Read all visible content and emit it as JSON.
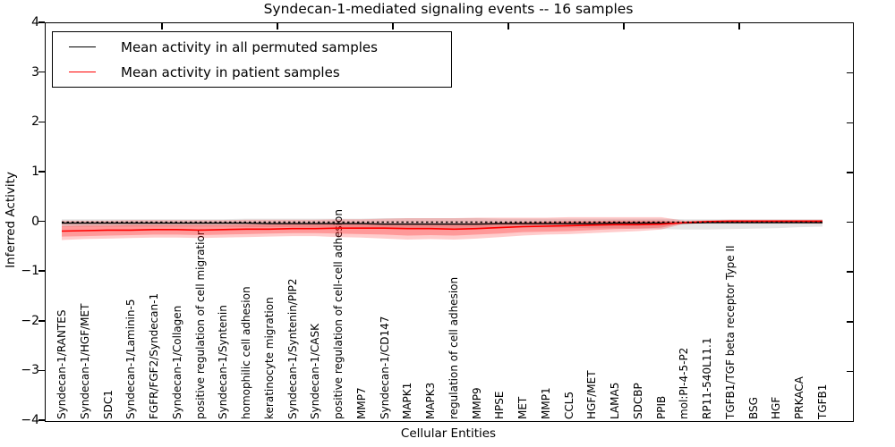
{
  "title": "Syndecan-1-mediated signaling events -- 16 samples",
  "axes": {
    "xlabel": "Cellular Entities",
    "ylabel": "Inferred Activity",
    "yticks": [
      "4",
      "3",
      "2",
      "1",
      "0",
      "−1",
      "−2",
      "−3",
      "−4"
    ],
    "ytick_values": [
      4,
      3,
      2,
      1,
      0,
      -1,
      -2,
      -3,
      -4
    ],
    "ylim": [
      -4,
      4
    ]
  },
  "legend": {
    "items": [
      {
        "label": "Mean activity in all permuted samples",
        "color": "#000000"
      },
      {
        "label": "Mean activity in patient samples",
        "color": "#ff0000"
      }
    ]
  },
  "colors": {
    "permuted_line": "#000000",
    "patient_line": "#ff0000",
    "permuted_band": "rgba(0,0,0,0.10)",
    "patient_band_outer": "rgba(255,0,0,0.20)",
    "patient_band_inner": "rgba(255,0,0,0.25)",
    "zero_line": "#000000"
  },
  "chart_data": {
    "type": "line",
    "title": "Syndecan-1-mediated signaling events -- 16 samples",
    "xlabel": "Cellular Entities",
    "ylabel": "Inferred Activity",
    "ylim": [
      -4,
      4
    ],
    "grid": false,
    "legend_position": "upper left",
    "zero_reference_line": 0,
    "categories": [
      "Syndecan-1/RANTES",
      "Syndecan-1/HGF/MET",
      "SDC1",
      "Syndecan-1/Laminin-5",
      "FGFR/FGF2/Syndecan-1",
      "Syndecan-1/Collagen",
      "positive regulation of cell migration",
      "Syndecan-1/Syntenin",
      "homophilic cell adhesion",
      "keratinocyte migration",
      "Syndecan-1/Syntenin/PIP2",
      "Syndecan-1/CASK",
      "positive regulation of cell-cell adhesion",
      "MMP7",
      "Syndecan-1/CD147",
      "MAPK1",
      "MAPK3",
      "regulation of cell adhesion",
      "MMP9",
      "HPSE",
      "MET",
      "MMP1",
      "CCL5",
      "HGF/MET",
      "LAMA5",
      "SDCBP",
      "PPIB",
      "mol:PI-4-5-P2",
      "RP11-540L11.1",
      "TGFB1/TGF beta receptor Type II",
      "BSG",
      "HGF",
      "PRKACA",
      "TGFB1"
    ],
    "series": [
      {
        "name": "Mean activity in all permuted samples",
        "color": "#000000",
        "values": [
          -0.02,
          -0.02,
          -0.02,
          -0.02,
          -0.02,
          -0.02,
          -0.02,
          -0.02,
          -0.02,
          -0.03,
          -0.03,
          -0.03,
          -0.03,
          -0.03,
          -0.04,
          -0.04,
          -0.04,
          -0.04,
          -0.04,
          -0.03,
          -0.03,
          -0.03,
          -0.03,
          -0.03,
          -0.02,
          -0.02,
          -0.02,
          -0.02,
          -0.01,
          -0.01,
          -0.01,
          -0.01,
          -0.01,
          -0.01
        ],
        "band_top": [
          0.06,
          0.06,
          0.06,
          0.06,
          0.06,
          0.06,
          0.06,
          0.06,
          0.07,
          0.07,
          0.07,
          0.07,
          0.07,
          0.07,
          0.08,
          0.08,
          0.08,
          0.08,
          0.08,
          0.07,
          0.07,
          0.07,
          0.07,
          0.07,
          0.07,
          0.07,
          0.07,
          0.06,
          0.06,
          0.06,
          0.06,
          0.06,
          0.06,
          0.06
        ],
        "band_bottom": [
          -0.09,
          -0.09,
          -0.09,
          -0.09,
          -0.09,
          -0.09,
          -0.09,
          -0.09,
          -0.1,
          -0.1,
          -0.1,
          -0.1,
          -0.1,
          -0.11,
          -0.11,
          -0.12,
          -0.12,
          -0.12,
          -0.12,
          -0.11,
          -0.11,
          -0.11,
          -0.11,
          -0.12,
          -0.12,
          -0.13,
          -0.14,
          -0.15,
          -0.15,
          -0.14,
          -0.13,
          -0.12,
          -0.1,
          -0.09
        ]
      },
      {
        "name": "Mean activity in patient samples",
        "color": "#ff0000",
        "values": [
          -0.18,
          -0.17,
          -0.16,
          -0.16,
          -0.15,
          -0.15,
          -0.16,
          -0.15,
          -0.14,
          -0.14,
          -0.13,
          -0.13,
          -0.12,
          -0.12,
          -0.12,
          -0.13,
          -0.13,
          -0.14,
          -0.13,
          -0.11,
          -0.09,
          -0.08,
          -0.07,
          -0.06,
          -0.05,
          -0.05,
          -0.04,
          -0.01,
          0.01,
          0.02,
          0.02,
          0.02,
          0.02,
          0.02
        ],
        "band_top": [
          0.03,
          0.03,
          0.03,
          0.04,
          0.04,
          0.04,
          0.04,
          0.04,
          0.05,
          0.05,
          0.05,
          0.05,
          0.06,
          0.06,
          0.07,
          0.08,
          0.08,
          0.08,
          0.09,
          0.09,
          0.09,
          0.09,
          0.1,
          0.1,
          0.1,
          0.1,
          0.1,
          0.03,
          0.04,
          0.05,
          0.05,
          0.05,
          0.05,
          0.05
        ],
        "band_bottom": [
          -0.36,
          -0.34,
          -0.33,
          -0.32,
          -0.31,
          -0.31,
          -0.32,
          -0.31,
          -0.3,
          -0.29,
          -0.28,
          -0.28,
          -0.3,
          -0.31,
          -0.33,
          -0.35,
          -0.34,
          -0.35,
          -0.33,
          -0.3,
          -0.27,
          -0.25,
          -0.24,
          -0.22,
          -0.2,
          -0.18,
          -0.15,
          -0.03,
          -0.01,
          -0.02,
          -0.02,
          -0.02,
          -0.02,
          -0.03
        ],
        "inner_band_top": [
          -0.08,
          -0.07,
          -0.07,
          -0.06,
          -0.06,
          -0.06,
          -0.06,
          -0.06,
          -0.05,
          -0.05,
          -0.04,
          -0.04,
          -0.03,
          -0.03,
          -0.03,
          -0.03,
          -0.03,
          -0.03,
          -0.02,
          -0.01,
          0.0,
          0.01,
          0.02,
          0.02,
          0.03,
          0.03,
          0.03,
          0.01,
          0.03,
          0.04,
          0.04,
          0.04,
          0.04,
          0.04
        ],
        "inner_band_bottom": [
          -0.29,
          -0.28,
          -0.27,
          -0.26,
          -0.25,
          -0.25,
          -0.26,
          -0.25,
          -0.24,
          -0.23,
          -0.22,
          -0.22,
          -0.23,
          -0.24,
          -0.25,
          -0.27,
          -0.26,
          -0.27,
          -0.25,
          -0.23,
          -0.2,
          -0.19,
          -0.18,
          -0.16,
          -0.14,
          -0.13,
          -0.11,
          -0.02,
          0.0,
          -0.01,
          -0.01,
          -0.01,
          -0.01,
          -0.01
        ]
      }
    ]
  }
}
